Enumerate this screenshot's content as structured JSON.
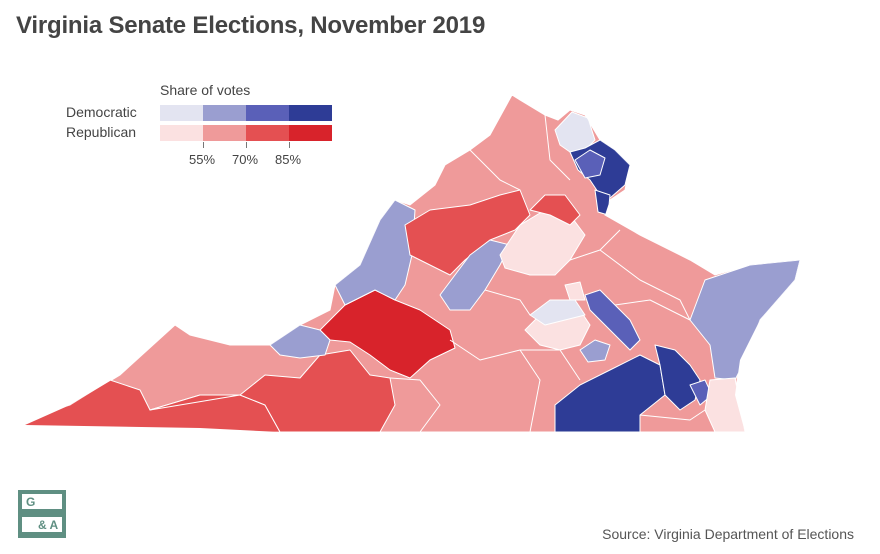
{
  "title": "Virginia Senate Elections, November 2019",
  "legend": {
    "title": "Share of votes",
    "democratic_label": "Democratic",
    "republican_label": "Republican",
    "tick_labels": [
      "55%",
      "70%",
      "85%"
    ],
    "democratic_colors": [
      "#e3e4f1",
      "#9a9ed0",
      "#5a60b8",
      "#2e3c96"
    ],
    "republican_colors": [
      "#fbe1e1",
      "#ef9a9a",
      "#e45052",
      "#d8232b"
    ]
  },
  "source": "Source: Virginia Department of Elections",
  "logo": {
    "icon": "ga-logo-icon",
    "text_top": "G",
    "text_bottom": "& A",
    "color": "#5f8f82"
  }
}
